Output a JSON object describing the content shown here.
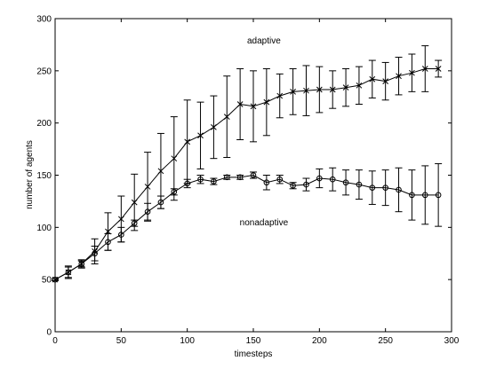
{
  "chart_data": {
    "type": "line",
    "title": "",
    "xlabel": "timesteps",
    "ylabel": "number of agents",
    "xlim": [
      0,
      300
    ],
    "ylim": [
      0,
      300
    ],
    "xticks": [
      0,
      50,
      100,
      150,
      200,
      250,
      300
    ],
    "yticks": [
      0,
      50,
      100,
      150,
      200,
      250,
      300
    ],
    "grid": false,
    "legend": "none",
    "annotations": [
      {
        "text": "adaptive",
        "x": 158,
        "y": 276
      },
      {
        "text": "nonadaptive",
        "x": 158,
        "y": 102
      }
    ],
    "series": [
      {
        "name": "adaptive",
        "marker": "x",
        "x": [
          0,
          10,
          20,
          30,
          40,
          50,
          60,
          70,
          80,
          90,
          100,
          110,
          120,
          130,
          140,
          150,
          160,
          170,
          180,
          190,
          200,
          210,
          220,
          230,
          240,
          250,
          260,
          270,
          280,
          290
        ],
        "y": [
          50,
          57,
          65,
          77,
          96,
          108,
          124,
          139,
          154,
          166,
          182,
          188,
          196,
          206,
          218,
          216,
          220,
          226,
          230,
          231,
          232,
          232,
          234,
          236,
          242,
          240,
          245,
          248,
          252,
          252
        ],
        "err": [
          1,
          6,
          4,
          12,
          18,
          22,
          27,
          33,
          36,
          40,
          40,
          32,
          30,
          39,
          34,
          34,
          32,
          21,
          22,
          24,
          22,
          18,
          18,
          18,
          18,
          18,
          18,
          18,
          22,
          8
        ]
      },
      {
        "name": "nonadaptive",
        "marker": "o",
        "x": [
          0,
          10,
          20,
          30,
          40,
          50,
          60,
          70,
          80,
          90,
          100,
          110,
          120,
          130,
          140,
          150,
          160,
          170,
          180,
          190,
          200,
          210,
          220,
          230,
          240,
          250,
          260,
          270,
          280,
          290
        ],
        "y": [
          50,
          57,
          65,
          75,
          86,
          93,
          104,
          115,
          124,
          134,
          142,
          146,
          144,
          148,
          148,
          150,
          143,
          146,
          140,
          141,
          147,
          146,
          143,
          141,
          138,
          138,
          136,
          131,
          131,
          131
        ],
        "err": [
          1,
          5,
          3,
          7,
          8,
          7,
          3,
          8,
          6,
          3,
          4,
          4,
          3,
          2,
          2,
          3,
          7,
          4,
          3,
          6,
          9,
          11,
          12,
          14,
          16,
          17,
          21,
          24,
          28,
          30
        ]
      }
    ],
    "colors": {
      "line": "#000000",
      "background": "#ffffff"
    }
  }
}
